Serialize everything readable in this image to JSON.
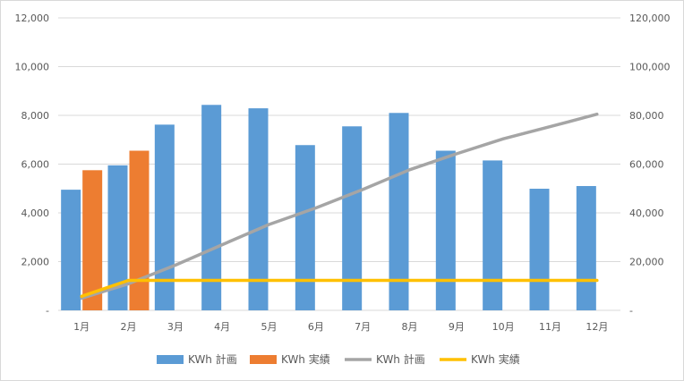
{
  "chart_data": {
    "type": "bar",
    "categories": [
      "1月",
      "2月",
      "3月",
      "4月",
      "5月",
      "6月",
      "7月",
      "8月",
      "9月",
      "10月",
      "11月",
      "12月"
    ],
    "y_left": {
      "ylim": [
        0,
        12000
      ],
      "ticks": [
        "-",
        "2,000",
        "4,000",
        "6,000",
        "8,000",
        "10,000",
        "12,000"
      ]
    },
    "y_right": {
      "ylim": [
        0,
        120000
      ],
      "ticks": [
        "-",
        "20,000",
        "40,000",
        "60,000",
        "80,000",
        "100,000",
        "120,000"
      ]
    },
    "series": [
      {
        "name": "KWh 計画",
        "type": "bar",
        "axis": "left",
        "color": "#5b9bd5",
        "values": [
          4950,
          5950,
          7620,
          8430,
          8290,
          6780,
          7550,
          8100,
          6550,
          6150,
          4990,
          5100
        ]
      },
      {
        "name": "KWh 実績",
        "type": "bar",
        "axis": "left",
        "color": "#ed7d31",
        "values": [
          5750,
          6550,
          null,
          null,
          null,
          null,
          null,
          null,
          null,
          null,
          null,
          null
        ]
      },
      {
        "name": "KWh 計画",
        "type": "line",
        "axis": "right",
        "color": "#a5a5a5",
        "values": [
          4950,
          10900,
          18520,
          26950,
          35240,
          42020,
          49570,
          57670,
          64220,
          70370,
          75360,
          80460
        ]
      },
      {
        "name": "KWh 実績",
        "type": "line",
        "axis": "right",
        "color": "#ffc000",
        "values": [
          5750,
          12300,
          12300,
          12300,
          12300,
          12300,
          12300,
          12300,
          12300,
          12300,
          12300,
          12300
        ]
      }
    ],
    "grid": true,
    "legend_position": "bottom"
  }
}
